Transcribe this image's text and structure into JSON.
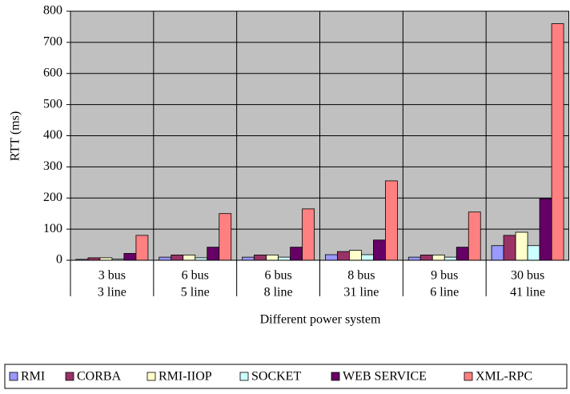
{
  "chart_data": {
    "type": "bar",
    "y_label": "RTT (ms)",
    "x_label": "Different power system",
    "categories": [
      [
        "3 bus",
        "3 line"
      ],
      [
        "6 bus",
        "5 line"
      ],
      [
        "6 bus",
        "8 line"
      ],
      [
        "8 bus",
        "31 line"
      ],
      [
        "9 bus",
        "6 line"
      ],
      [
        "30 bus",
        "41 line"
      ]
    ],
    "series": [
      {
        "name": "RMI",
        "color": "#9999ff",
        "values": [
          3,
          10,
          10,
          18,
          10,
          47
        ]
      },
      {
        "name": "CORBA",
        "color": "#993366",
        "values": [
          8,
          17,
          17,
          28,
          17,
          80
        ]
      },
      {
        "name": "RMI-IIOP",
        "color": "#ffffcc",
        "values": [
          8,
          17,
          17,
          32,
          17,
          90
        ]
      },
      {
        "name": "SOCKET",
        "color": "#ccffff",
        "values": [
          4,
          8,
          10,
          18,
          10,
          47
        ]
      },
      {
        "name": "WEB SERVICE",
        "color": "#660066",
        "values": [
          22,
          42,
          42,
          65,
          42,
          198
        ]
      },
      {
        "name": "XML-RPC",
        "color": "#ff8080",
        "values": [
          80,
          150,
          165,
          255,
          155,
          760
        ]
      }
    ],
    "ylim": [
      0,
      800
    ],
    "yticks": [
      0,
      100,
      200,
      300,
      400,
      500,
      600,
      700,
      800
    ],
    "grid": true,
    "plot_background": "#c0c0c0",
    "legend": "bottom"
  }
}
